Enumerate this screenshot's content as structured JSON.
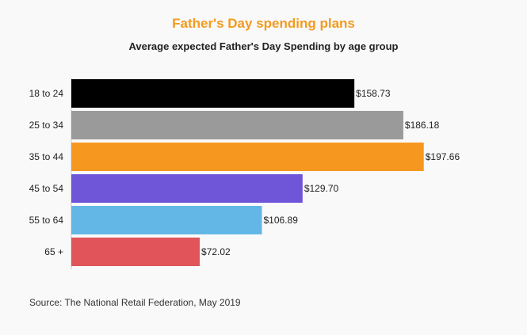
{
  "header": {
    "title": "Father's Day spending plans",
    "subtitle": "Average expected Father's Day Spending by age group"
  },
  "footer": {
    "source": "Source: The National Retail Federation, May 2019"
  },
  "colors": {
    "title": "#f39a1f"
  },
  "chart_data": {
    "type": "bar",
    "orientation": "horizontal",
    "title": "Father's Day spending plans",
    "subtitle": "Average expected Father's Day Spending by age group",
    "categories": [
      "18 to 24",
      "25 to 34",
      "35 to 44",
      "45 to 54",
      "55 to 64",
      "65 +"
    ],
    "values": [
      158.73,
      186.18,
      197.66,
      129.7,
      106.89,
      72.02
    ],
    "value_labels": [
      "$158.73",
      "$186.18",
      "$197.66",
      "$129.70",
      "$106.89",
      "$72.02"
    ],
    "bar_colors": [
      "#000000",
      "#9a9a9a",
      "#f6981f",
      "#6f55d8",
      "#63b7e6",
      "#e0545a"
    ],
    "xlabel": "",
    "ylabel": "",
    "xlim": [
      0,
      200
    ],
    "grid": false,
    "legend": "none"
  }
}
